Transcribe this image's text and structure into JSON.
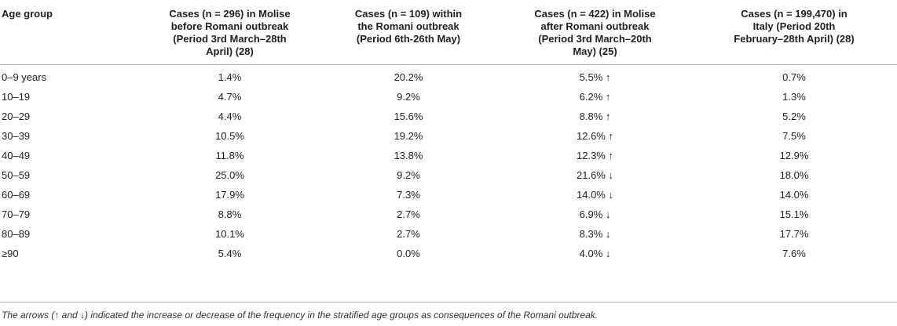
{
  "table": {
    "headers": [
      {
        "lines": [
          "Age group"
        ]
      },
      {
        "lines": [
          "Cases (n = 296) in Molise",
          "before Romani outbreak",
          "(Period 3rd March–28th",
          "April) (28)"
        ]
      },
      {
        "lines": [
          "Cases (n = 109) within",
          "the Romani outbreak",
          "(Period 6th-26th May)"
        ]
      },
      {
        "lines": [
          "Cases (n = 422) in Molise",
          "after Romani outbreak",
          "(Period 3rd March–20th",
          "May) (25)"
        ]
      },
      {
        "lines": [
          "Cases (n = 199,470) in",
          "Italy (Period 20th",
          "February–28th April) (28)"
        ]
      }
    ],
    "rows": [
      {
        "age": "0–9 years",
        "before": "1.4%",
        "within": "20.2%",
        "after": "5.5% ↑",
        "italy": "0.7%"
      },
      {
        "age": "10–19",
        "before": "4.7%",
        "within": "9.2%",
        "after": "6.2% ↑",
        "italy": "1.3%"
      },
      {
        "age": "20–29",
        "before": "4.4%",
        "within": "15.6%",
        "after": "8.8% ↑",
        "italy": "5.2%"
      },
      {
        "age": "30–39",
        "before": "10.5%",
        "within": "19.2%",
        "after": "12.6% ↑",
        "italy": "7.5%"
      },
      {
        "age": "40–49",
        "before": "11.8%",
        "within": "13.8%",
        "after": "12.3% ↑",
        "italy": "12.9%"
      },
      {
        "age": "50–59",
        "before": "25.0%",
        "within": "9.2%",
        "after": "21.6% ↓",
        "italy": "18.0%"
      },
      {
        "age": "60–69",
        "before": "17.9%",
        "within": "7.3%",
        "after": "14.0% ↓",
        "italy": "14.0%"
      },
      {
        "age": "70–79",
        "before": "8.8%",
        "within": "2.7%",
        "after": "6.9% ↓",
        "italy": "15.1%"
      },
      {
        "age": "80–89",
        "before": "10.1%",
        "within": "2.7%",
        "after": "8.3% ↓",
        "italy": "17.7%"
      },
      {
        "age": "≥90",
        "before": "5.4%",
        "within": "0.0%",
        "after": "4.0% ↓",
        "italy": "7.6%"
      }
    ]
  },
  "footnote": "The arrows (↑ and ↓) indicated the increase or decrease of the frequency in the stratified age groups as consequences of the Romani outbreak."
}
